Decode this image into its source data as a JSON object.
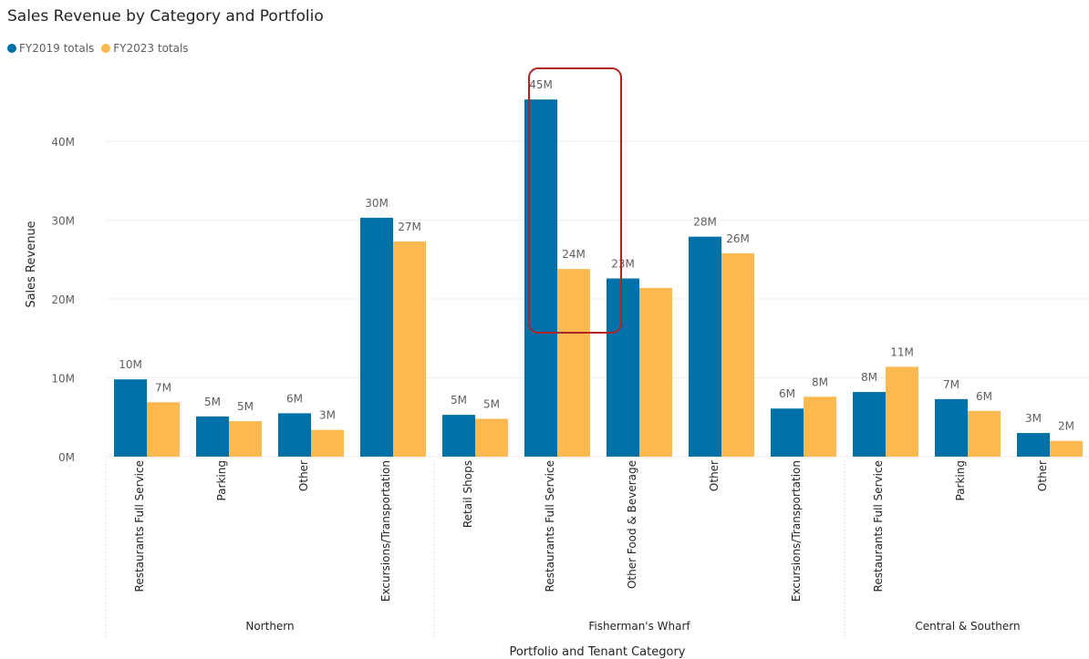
{
  "chart_data": {
    "type": "bar",
    "title": "Sales Revenue by Category and Portfolio",
    "xlabel": "Portfolio and Tenant Category",
    "ylabel": "Sales Revenue",
    "ylim": [
      0,
      46
    ],
    "y_ticks": [
      {
        "value": 0,
        "label": "0M"
      },
      {
        "value": 10,
        "label": "10M"
      },
      {
        "value": 20,
        "label": "20M"
      },
      {
        "value": 30,
        "label": "30M"
      },
      {
        "value": 40,
        "label": "40M"
      }
    ],
    "grid": true,
    "legend_position": "top-left",
    "groups": [
      {
        "name": "Northern",
        "span": [
          0,
          3
        ]
      },
      {
        "name": "Fisherman's Wharf",
        "span": [
          4,
          8
        ]
      },
      {
        "name": "Central & Southern",
        "span": [
          9,
          11
        ]
      }
    ],
    "categories": [
      "Restaurants Full Service",
      "Parking",
      "Other",
      "Excursions/Transportation",
      "Retail Shops",
      "Restaurants Full Service",
      "Other Food & Beverage",
      "Other",
      "Excursions/Transportation",
      "Restaurants Full Service",
      "Parking",
      "Other"
    ],
    "series": [
      {
        "name": "FY2019 totals",
        "color": "#0070a8",
        "values": [
          9.8,
          5.1,
          5.5,
          30.3,
          5.3,
          45.3,
          22.6,
          27.9,
          6.1,
          8.2,
          7.3,
          3.0
        ],
        "labels": [
          "10M",
          "5M",
          "6M",
          "30M",
          "5M",
          "45M",
          "23M",
          "28M",
          "6M",
          "8M",
          "7M",
          "3M"
        ]
      },
      {
        "name": "FY2023 totals",
        "color": "#fbb94f",
        "values": [
          6.9,
          4.5,
          3.4,
          27.3,
          4.8,
          23.8,
          21.4,
          25.8,
          7.6,
          11.4,
          5.8,
          2.0
        ],
        "labels": [
          "7M",
          "5M",
          "3M",
          "27M",
          "5M",
          "24M",
          "",
          "26M",
          "8M",
          "11M",
          "6M",
          "2M"
        ]
      }
    ],
    "highlight_box": {
      "color": "#b22222",
      "category_index": 5
    }
  }
}
